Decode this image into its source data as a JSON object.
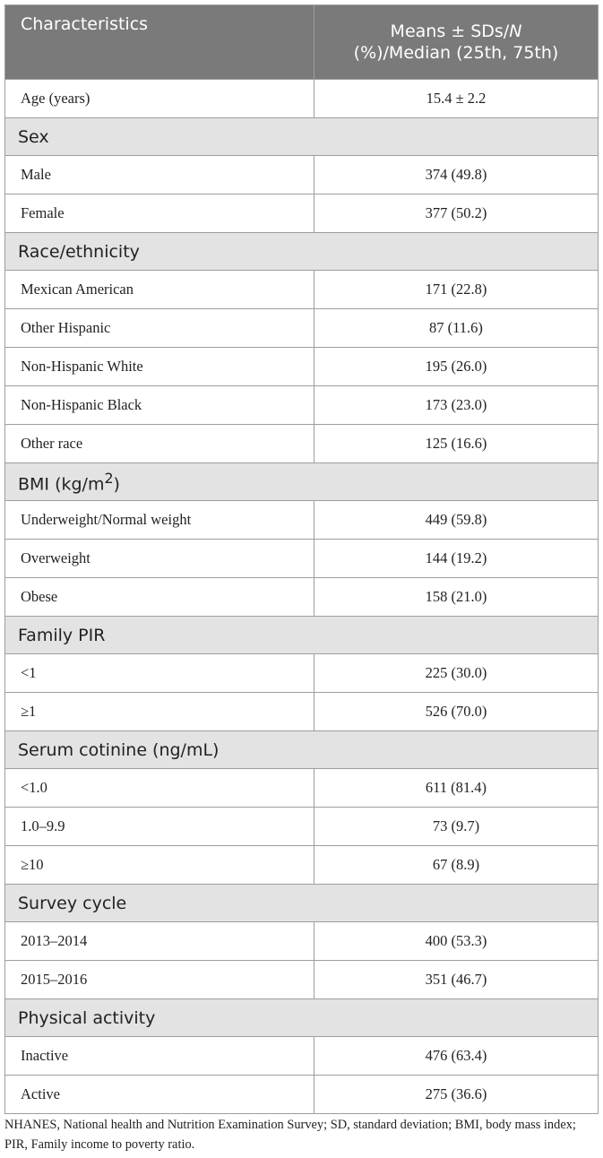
{
  "header": {
    "col1": "Characteristics",
    "col2_line1": "Means ± SDs/",
    "col2_italic": "N",
    "col2_line2": "(%)/Median (25th, 75th)"
  },
  "age": {
    "label": "Age (years)",
    "value": "15.4 ± 2.2"
  },
  "sex": {
    "title": "Sex",
    "rows": [
      {
        "label": "Male",
        "value": "374 (49.8)"
      },
      {
        "label": "Female",
        "value": "377 (50.2)"
      }
    ]
  },
  "race": {
    "title": "Race/ethnicity",
    "rows": [
      {
        "label": "Mexican American",
        "value": "171 (22.8)"
      },
      {
        "label": "Other Hispanic",
        "value": "87 (11.6)"
      },
      {
        "label": "Non-Hispanic White",
        "value": "195 (26.0)"
      },
      {
        "label": "Non-Hispanic Black",
        "value": "173 (23.0)"
      },
      {
        "label": "Other race",
        "value": "125 (16.6)"
      }
    ]
  },
  "bmi": {
    "title": "BMI (kg/m",
    "title_sup": "2",
    "title_end": ")",
    "rows": [
      {
        "label": "Underweight/Normal weight",
        "value": "449 (59.8)"
      },
      {
        "label": "Overweight",
        "value": "144 (19.2)"
      },
      {
        "label": "Obese",
        "value": "158 (21.0)"
      }
    ]
  },
  "pir": {
    "title": "Family PIR",
    "rows": [
      {
        "label": "<1",
        "value": "225 (30.0)"
      },
      {
        "label": "≥1",
        "value": "526 (70.0)"
      }
    ]
  },
  "cotinine": {
    "title": "Serum cotinine (ng/mL)",
    "rows": [
      {
        "label": "<1.0",
        "value": "611 (81.4)"
      },
      {
        "label": "1.0–9.9",
        "value": "73 (9.7)"
      },
      {
        "label": "≥10",
        "value": "67 (8.9)"
      }
    ]
  },
  "cycle": {
    "title": "Survey cycle",
    "rows": [
      {
        "label": "2013–2014",
        "value": "400 (53.3)"
      },
      {
        "label": "2015–2016",
        "value": "351 (46.7)"
      }
    ]
  },
  "activity": {
    "title": "Physical activity",
    "rows": [
      {
        "label": "Inactive",
        "value": "476 (63.4)"
      },
      {
        "label": "Active",
        "value": "275 (36.6)"
      }
    ]
  },
  "footnote": "NHANES, National health and Nutrition Examination Survey; SD, standard deviation; BMI, body mass index; PIR, Family income to poverty ratio."
}
